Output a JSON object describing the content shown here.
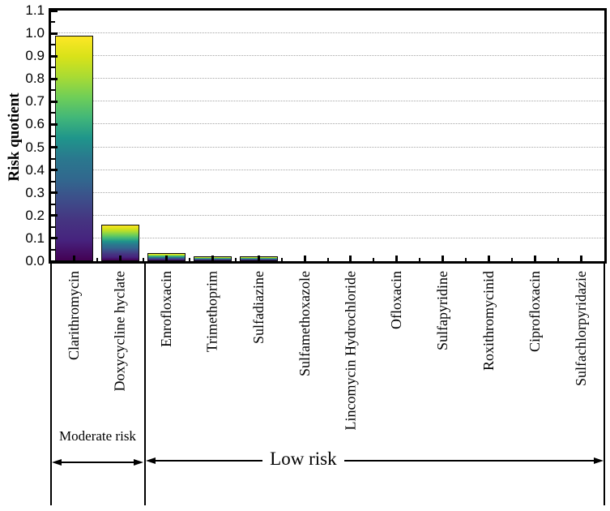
{
  "chart_data": {
    "type": "bar",
    "title": "",
    "xlabel": "",
    "ylabel": "Risk quotient",
    "ylim": [
      0,
      1.1
    ],
    "ytick_step": 0.1,
    "ytick_labels": [
      "0.0",
      "0.1",
      "0.2",
      "0.3",
      "0.4",
      "0.5",
      "0.6",
      "0.7",
      "0.8",
      "0.9",
      "1.0",
      "1.1"
    ],
    "grid": "horizontal dotted gridlines at each 0.1 from 0.1 to 1.0",
    "legend": "none",
    "categories": [
      "Clarithromycin",
      "Doxycycline hyclate",
      "Enrofloxacin",
      "Trimethoprim",
      "Sulfadiazine",
      "Sulfamethoxazole",
      "Lincomycin Hydrochloride",
      "Ofloxacin",
      "Sulfapyridine",
      "Roxithromycinid",
      "Ciprofloxacin",
      "Sulfachlorpyridazie"
    ],
    "values": [
      0.99,
      0.16,
      0.035,
      0.022,
      0.022,
      0.002,
      0.002,
      0.002,
      0.002,
      0.002,
      0.002,
      0.002
    ],
    "bar_gradient_top_to_bottom": [
      "#fde725",
      "#d8e219",
      "#a8db34",
      "#6ece58",
      "#41b679",
      "#1f958b",
      "#2a788e",
      "#31688e",
      "#3d4e8a",
      "#453581",
      "#46237e",
      "#440154"
    ],
    "annotations": [
      {
        "label": "Moderate risk",
        "category_range": [
          "Clarithromycin",
          "Doxycycline hyclate"
        ]
      },
      {
        "label": "Low risk",
        "category_range": [
          "Enrofloxacin",
          "Sulfachlorpyridazie"
        ]
      }
    ]
  },
  "colors": {
    "axis": "#000000",
    "gridline": "#a6a6a6",
    "background": "#ffffff",
    "bar_outline": "#0a0a0a"
  }
}
